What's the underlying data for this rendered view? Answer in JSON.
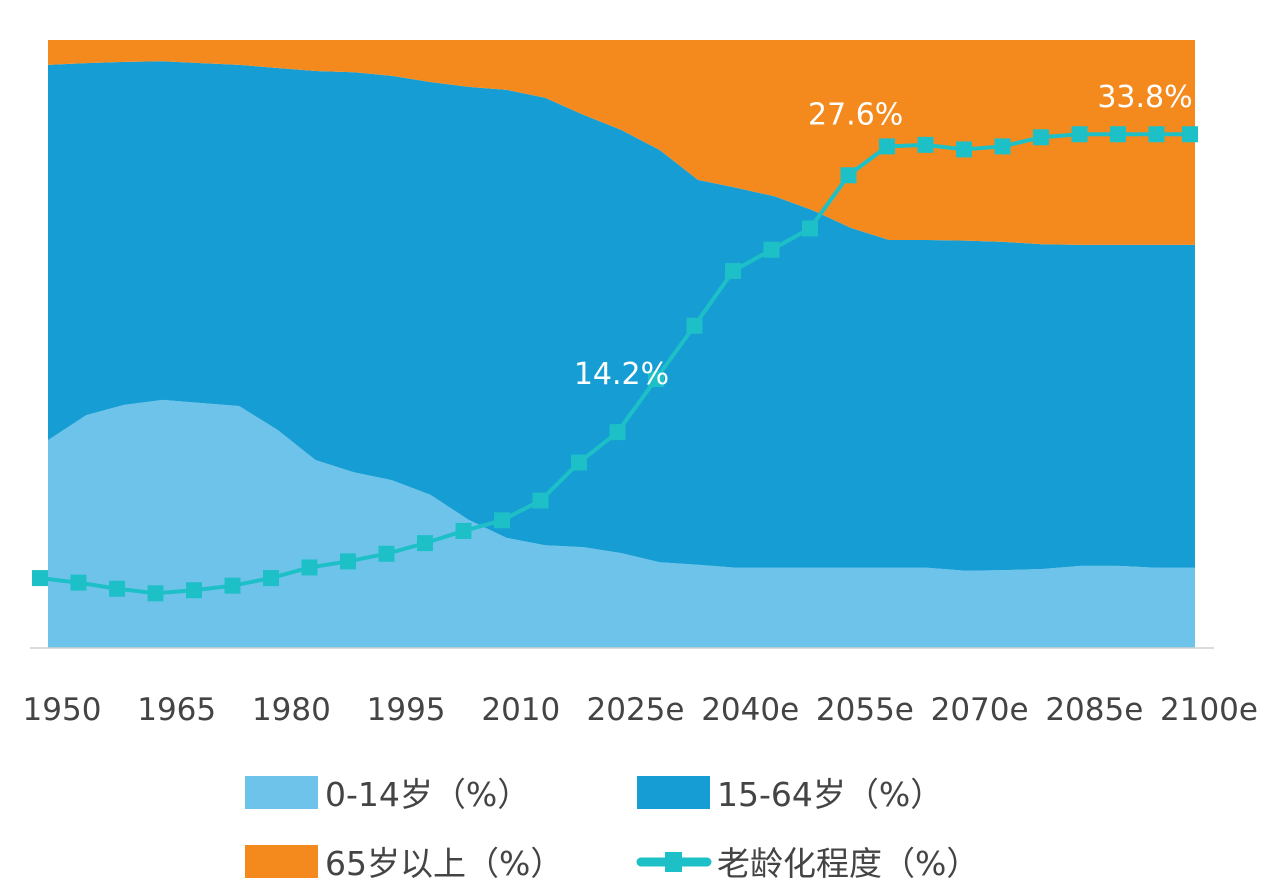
{
  "chart_data": {
    "type": "area",
    "stacked": true,
    "x": [
      1950,
      1955,
      1960,
      1965,
      1970,
      1975,
      1980,
      1985,
      1990,
      1995,
      2000,
      2005,
      2010,
      2015,
      2020,
      2025,
      2030,
      2035,
      2040,
      2045,
      2050,
      2055,
      2060,
      2065,
      2070,
      2075,
      2080,
      2085,
      2090,
      2095,
      2100
    ],
    "x_tick_labels": [
      "1950",
      "1965",
      "1980",
      "1995",
      "2010",
      "2025e",
      "2040e",
      "2055e",
      "2070e",
      "2085e",
      "2100e"
    ],
    "x_tick_values": [
      1950,
      1965,
      1980,
      1995,
      2010,
      2025,
      2040,
      2055,
      2070,
      2085,
      2100
    ],
    "ylim": [
      0,
      100
    ],
    "line_ylim": [
      0,
      40
    ],
    "grid": false,
    "legend_placement": "bottom",
    "series": [
      {
        "name": "0-14岁（%）",
        "type": "area",
        "color": "#6EC3EA",
        "values": [
          34.2,
          38.3,
          40.0,
          40.8,
          40.3,
          39.8,
          35.9,
          30.9,
          28.9,
          27.6,
          25.2,
          21.1,
          18.1,
          16.9,
          16.6,
          15.6,
          14.1,
          13.7,
          13.2,
          13.2,
          13.2,
          13.2,
          13.2,
          13.2,
          12.7,
          12.8,
          13.0,
          13.5,
          13.5,
          13.2,
          13.2
        ]
      },
      {
        "name": "15-64岁（%）",
        "type": "area",
        "color": "#169DD3",
        "values": [
          61.7,
          57.9,
          56.4,
          55.7,
          55.9,
          56.1,
          59.5,
          64.0,
          65.8,
          66.5,
          67.9,
          71.2,
          73.7,
          73.6,
          71.1,
          69.6,
          67.8,
          63.3,
          62.5,
          61.1,
          58.8,
          55.9,
          53.9,
          53.9,
          54.3,
          54.0,
          53.4,
          52.8,
          52.8,
          53.1,
          53.1
        ]
      },
      {
        "name": "65岁以上（%）",
        "type": "area",
        "color": "#F48A1E",
        "values": [
          4.1,
          3.8,
          3.6,
          3.5,
          3.8,
          4.1,
          4.6,
          5.1,
          5.3,
          5.9,
          6.9,
          7.7,
          8.2,
          9.5,
          12.3,
          14.8,
          18.1,
          23.0,
          24.3,
          25.7,
          28.0,
          30.9,
          32.9,
          32.9,
          33.0,
          33.2,
          33.6,
          33.7,
          33.7,
          33.7,
          33.7
        ]
      },
      {
        "name": "老龄化程度（%）",
        "type": "line",
        "color": "#1EC0C8",
        "values": [
          4.6,
          4.3,
          3.9,
          3.6,
          3.8,
          4.1,
          4.6,
          5.3,
          5.7,
          6.2,
          6.9,
          7.7,
          8.4,
          9.7,
          12.2,
          14.2,
          17.7,
          21.2,
          24.8,
          26.2,
          27.6,
          31.1,
          33.0,
          33.1,
          32.8,
          33.0,
          33.6,
          33.8,
          33.8,
          33.8,
          33.8
        ]
      }
    ],
    "annotations": [
      {
        "x": 2025,
        "text": "14.2%"
      },
      {
        "x": 2050,
        "text": "27.6%"
      },
      {
        "x": 2100,
        "text": "33.8%"
      }
    ]
  }
}
